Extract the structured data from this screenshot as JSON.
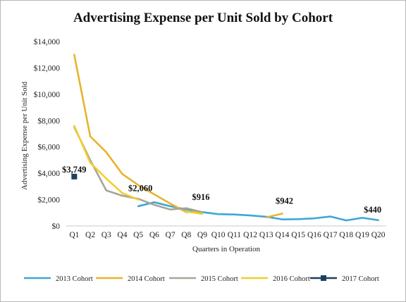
{
  "chart_data": {
    "type": "line",
    "title": "Advertising Expense per Unit Sold by Cohort",
    "xlabel": "Quarters in Operation",
    "ylabel": "Advertising Expense per Unit Sold",
    "categories": [
      "Q1",
      "Q2",
      "Q3",
      "Q4",
      "Q5",
      "Q6",
      "Q7",
      "Q8",
      "Q9",
      "Q10",
      "Q11",
      "Q12",
      "Q13",
      "Q14",
      "Q15",
      "Q16",
      "Q17",
      "Q18",
      "Q19",
      "Q20"
    ],
    "ylim": [
      0,
      14000
    ],
    "yticks": [
      0,
      2000,
      4000,
      6000,
      8000,
      10000,
      12000,
      14000
    ],
    "ytick_labels": [
      "$0",
      "$2,000",
      "$4,000",
      "$6,000",
      "$8,000",
      "$10,000",
      "$12,000",
      "$14,000"
    ],
    "grid": false,
    "legend_position": "bottom",
    "series": [
      {
        "name": "2013 Cohort",
        "color": "#3fa7d3",
        "marker": "none",
        "values": [
          null,
          null,
          null,
          null,
          1500,
          1800,
          1500,
          1250,
          1050,
          900,
          870,
          800,
          700,
          500,
          520,
          580,
          720,
          420,
          620,
          440
        ]
      },
      {
        "name": "2014 Cohort",
        "color": "#e8b42e",
        "marker": "none",
        "values": [
          13000,
          6800,
          5600,
          3950,
          3100,
          2400,
          1700,
          1050,
          1050,
          null,
          null,
          null,
          650,
          942,
          null,
          null,
          null,
          null,
          null,
          null
        ]
      },
      {
        "name": "2015 Cohort",
        "color": "#a8a497",
        "marker": "none",
        "values": [
          7500,
          5000,
          2700,
          2300,
          2060,
          1600,
          1250,
          1350,
          1050,
          null,
          null,
          null,
          null,
          null,
          null,
          null,
          null,
          null,
          null,
          null
        ]
      },
      {
        "name": "2016 Cohort",
        "color": "#f0cf2c",
        "marker": "none",
        "values": [
          7600,
          4800,
          3600,
          2500,
          2000,
          null,
          null,
          1100,
          916,
          null,
          null,
          null,
          null,
          null,
          null,
          null,
          null,
          null,
          null,
          null
        ]
      },
      {
        "name": "2017 Cohort",
        "color": "#1f3f5f",
        "marker": "square",
        "values": [
          3749,
          null,
          null,
          null,
          null,
          null,
          null,
          null,
          null,
          null,
          null,
          null,
          null,
          null,
          null,
          null,
          null,
          null,
          null,
          null
        ]
      }
    ],
    "annotations": [
      {
        "text": "$3,749",
        "category": "Q1",
        "value": 3749
      },
      {
        "text": "$2,060",
        "category": "Q5",
        "value": 2060
      },
      {
        "text": "$916",
        "category": "Q9",
        "value": 916
      },
      {
        "text": "$942",
        "category": "Q14",
        "value": 942
      },
      {
        "text": "$440",
        "category": "Q20",
        "value": 440
      }
    ]
  }
}
